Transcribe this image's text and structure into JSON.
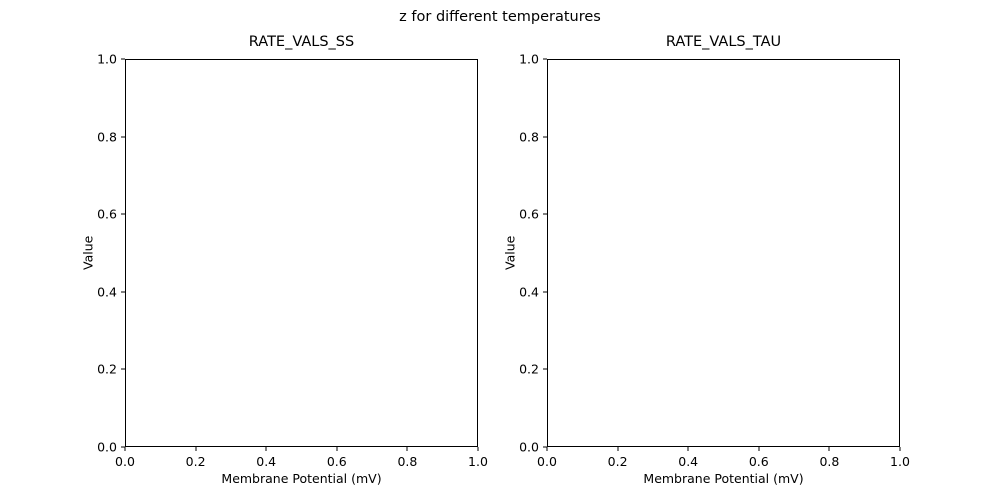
{
  "figure": {
    "suptitle": "z for different temperatures",
    "background_color": "#ffffff",
    "axis_color": "#000000"
  },
  "chart_data": [
    {
      "type": "line",
      "title": "RATE_VALS_SS",
      "xlabel": "Membrane Potential (mV)",
      "ylabel": "Value",
      "xlim": [
        0.0,
        1.0
      ],
      "ylim": [
        0.0,
        1.0
      ],
      "xticks": [
        "0.0",
        "0.2",
        "0.4",
        "0.6",
        "0.8",
        "1.0"
      ],
      "yticks": [
        "0.0",
        "0.2",
        "0.4",
        "0.6",
        "0.8",
        "1.0"
      ],
      "grid": false,
      "legend": null,
      "series": []
    },
    {
      "type": "line",
      "title": "RATE_VALS_TAU",
      "xlabel": "Membrane Potential (mV)",
      "ylabel": "Value",
      "xlim": [
        0.0,
        1.0
      ],
      "ylim": [
        0.0,
        1.0
      ],
      "xticks": [
        "0.0",
        "0.2",
        "0.4",
        "0.6",
        "0.8",
        "1.0"
      ],
      "yticks": [
        "0.0",
        "0.2",
        "0.4",
        "0.6",
        "0.8",
        "1.0"
      ],
      "grid": false,
      "legend": null,
      "series": []
    }
  ]
}
